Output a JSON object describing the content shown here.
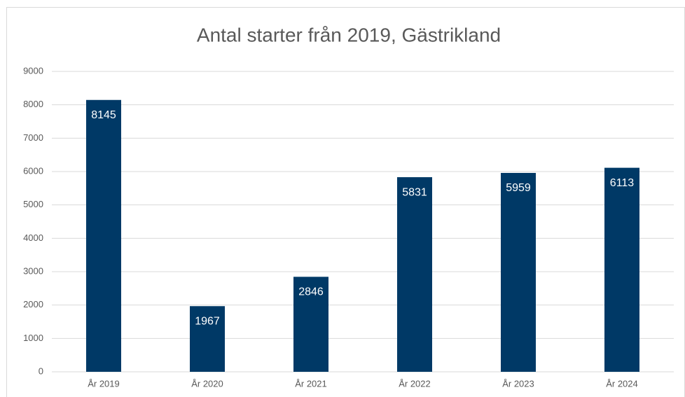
{
  "chart_data": {
    "type": "bar",
    "title": "Antal starter från 2019, Gästrikland",
    "categories": [
      "År 2019",
      "År 2020",
      "År 2021",
      "År 2022",
      "År 2023",
      "År 2024"
    ],
    "values": [
      8145,
      1967,
      2846,
      5831,
      5959,
      6113
    ],
    "color": "#003966",
    "ylim": [
      0,
      9000
    ],
    "yticks": [
      0,
      1000,
      2000,
      3000,
      4000,
      5000,
      6000,
      7000,
      8000,
      9000
    ],
    "grid": true
  }
}
